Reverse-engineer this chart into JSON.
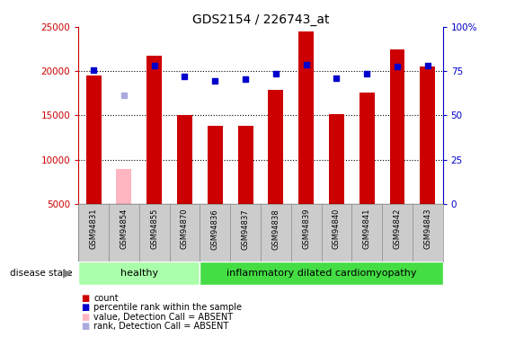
{
  "title": "GDS2154 / 226743_at",
  "samples": [
    "GSM94831",
    "GSM94854",
    "GSM94855",
    "GSM94870",
    "GSM94836",
    "GSM94837",
    "GSM94838",
    "GSM94839",
    "GSM94840",
    "GSM94841",
    "GSM94842",
    "GSM94843"
  ],
  "bar_values": [
    19500,
    null,
    21700,
    15000,
    13800,
    13800,
    17900,
    24500,
    15100,
    17600,
    22500,
    20500
  ],
  "absent_bar_values": [
    null,
    8900,
    null,
    null,
    null,
    null,
    null,
    null,
    null,
    null,
    null,
    null
  ],
  "percentile_values": [
    20100,
    null,
    20600,
    19400,
    18900,
    19100,
    19700,
    20700,
    19200,
    19700,
    20500,
    20600
  ],
  "absent_percentile_values": [
    null,
    17300,
    null,
    null,
    null,
    null,
    null,
    null,
    null,
    null,
    null,
    null
  ],
  "ylim_left": [
    5000,
    25000
  ],
  "ylim_right": [
    0,
    100
  ],
  "yticks_left": [
    5000,
    10000,
    15000,
    20000,
    25000
  ],
  "yticks_right": [
    0,
    25,
    50,
    75,
    100
  ],
  "ytick_labels_right": [
    "0",
    "25",
    "50",
    "75",
    "100%"
  ],
  "bar_color": "#cc0000",
  "absent_bar_color": "#ffb6c1",
  "percentile_color": "#0000cc",
  "absent_percentile_color": "#aaaadd",
  "healthy_group": [
    "GSM94831",
    "GSM94854",
    "GSM94855",
    "GSM94870"
  ],
  "idc_group": [
    "GSM94836",
    "GSM94837",
    "GSM94838",
    "GSM94839",
    "GSM94840",
    "GSM94841",
    "GSM94842",
    "GSM94843"
  ],
  "healthy_color": "#aaffaa",
  "idc_color": "#44dd44",
  "disease_state_label": "disease state",
  "healthy_label": "healthy",
  "idc_label": "inflammatory dilated cardiomyopathy",
  "legend_items": [
    "count",
    "percentile rank within the sample",
    "value, Detection Call = ABSENT",
    "rank, Detection Call = ABSENT"
  ],
  "legend_colors": [
    "#cc0000",
    "#0000cc",
    "#ffb6c1",
    "#aaaadd"
  ],
  "bar_width": 0.5,
  "marker_size": 5,
  "grid_dotted_at": [
    10000,
    15000,
    20000
  ],
  "label_area_color": "#cccccc",
  "label_divider_color": "#888888"
}
